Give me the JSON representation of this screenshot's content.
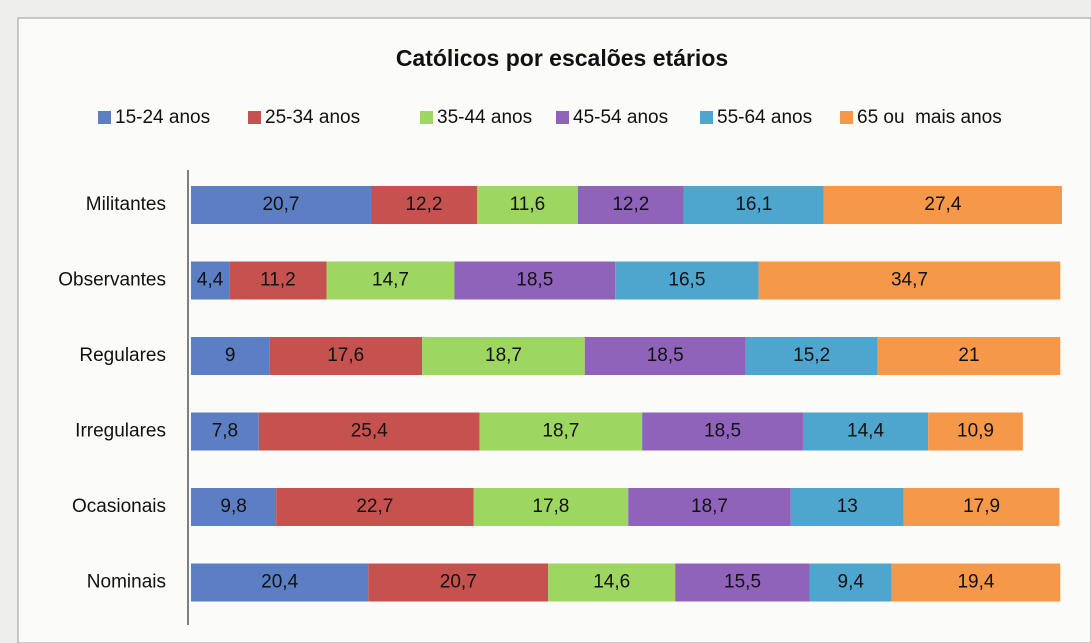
{
  "chart_data": {
    "type": "stacked_barh",
    "title": "Católicos por escalões etários",
    "categories": [
      "Militantes",
      "Observantes",
      "Regulares",
      "Irregulares",
      "Ocasionais",
      "Nominais"
    ],
    "series": [
      {
        "name": "15-24 anos",
        "color": "#5b7fc2",
        "values": [
          20.7,
          4.4,
          9,
          7.8,
          9.8,
          20.4
        ],
        "value_labels": [
          "20,7",
          "4,4",
          "9",
          "7,8",
          "9,8",
          "20,4"
        ]
      },
      {
        "name": "25-34 anos",
        "color": "#c5524e",
        "values": [
          12.2,
          11.2,
          17.6,
          25.4,
          22.7,
          20.7
        ],
        "value_labels": [
          "12,2",
          "11,2",
          "17,6",
          "25,4",
          "22,7",
          "20,7"
        ]
      },
      {
        "name": "35-44 anos",
        "color": "#9dd660",
        "values": [
          11.6,
          14.7,
          18.7,
          18.7,
          17.8,
          14.6
        ],
        "value_labels": [
          "11,6",
          "14,7",
          "18,7",
          "18,7",
          "17,8",
          "14,6"
        ]
      },
      {
        "name": "45-54 anos",
        "color": "#9063bb",
        "values": [
          12.2,
          18.5,
          18.5,
          18.5,
          18.7,
          15.5
        ],
        "value_labels": [
          "12,2",
          "18,5",
          "18,5",
          "18,5",
          "18,7",
          "15,5"
        ]
      },
      {
        "name": "55-64 anos",
        "color": "#4ea6cf",
        "values": [
          16.1,
          16.5,
          15.2,
          14.4,
          13,
          9.4
        ],
        "value_labels": [
          "16,1",
          "16,5",
          "15,2",
          "14,4",
          "13",
          "9,4"
        ]
      },
      {
        "name": "65 ou  mais anos",
        "color": "#f6984a",
        "values": [
          27.4,
          34.7,
          21,
          10.9,
          17.9,
          19.4
        ],
        "value_labels": [
          "27,4",
          "34,7",
          "21",
          "10,9",
          "17,9",
          "19,4"
        ]
      }
    ]
  }
}
